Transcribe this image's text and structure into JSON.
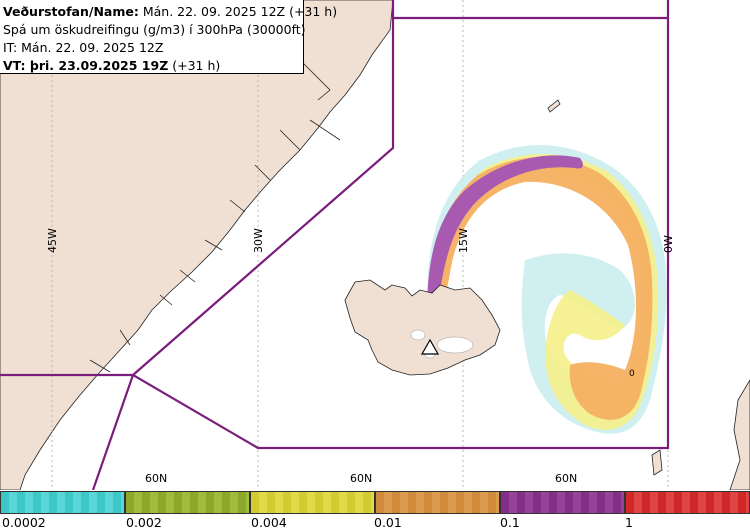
{
  "header": {
    "line1_bold": "Veðurstofan/Name:",
    "line1_rest": " Mán. 22. 09. 2025 12Z (+31 h)",
    "line2": "Spá um öskudreifingu (g/m3) í 300hPa (30000ft)",
    "line3": "IT: Mán. 22. 09. 2025 12Z",
    "line4_bold": "VT: þri. 23.09.2025 19Z",
    "line4_rest": " (+31 h)"
  },
  "map": {
    "longitude_labels": [
      "45W",
      "30W",
      "15W",
      "0W"
    ],
    "latitude_labels": [
      "60N",
      "60N",
      "60N"
    ],
    "peak_marker": "0",
    "colors": {
      "land": "#f0e0d4",
      "sea": "#ffffff",
      "boundary": "#7b1e7b",
      "coast": "#222222"
    }
  },
  "legend": {
    "ticks": [
      "0.0002",
      "0.002",
      "0.004",
      "0.01",
      "0.1",
      "1"
    ],
    "colors": [
      "#3cc8c8",
      "#8ca82a",
      "#d2cc30",
      "#d08a3a",
      "#842e88",
      "#d02828"
    ]
  }
}
